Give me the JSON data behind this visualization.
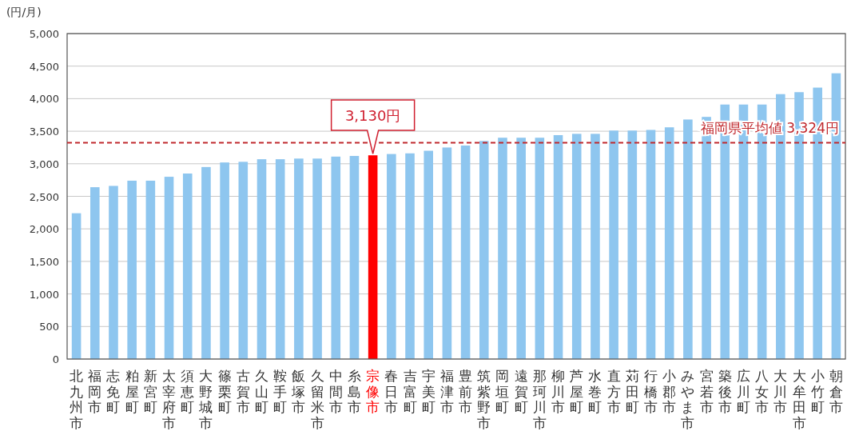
{
  "chart_data": {
    "type": "bar",
    "ylabel": "(円/月)",
    "categories": [
      "北九州市",
      "福岡市",
      "志免町",
      "粕屋町",
      "新宮町",
      "太宰府市",
      "須恵町",
      "大野城市",
      "篠栗町",
      "古賀市",
      "久山町",
      "鞍手町",
      "飯塚市",
      "久留米市",
      "中間市",
      "糸島市",
      "宗像市",
      "春日市",
      "吉富町",
      "宇美町",
      "福津市",
      "豊前市",
      "筑紫野市",
      "岡垣町",
      "遠賀町",
      "那珂川市",
      "柳川市",
      "芦屋町",
      "水巻町",
      "直方市",
      "苅田町",
      "行橋市",
      "小郡市",
      "みやま市",
      "宮若市",
      "築後市",
      "広川町",
      "八女市",
      "大川市",
      "大牟田市",
      "小竹町",
      "朝倉市"
    ],
    "values": [
      2240,
      2640,
      2660,
      2740,
      2740,
      2800,
      2850,
      2950,
      3020,
      3030,
      3070,
      3070,
      3080,
      3080,
      3110,
      3120,
      3130,
      3150,
      3160,
      3200,
      3250,
      3280,
      3350,
      3400,
      3400,
      3400,
      3440,
      3460,
      3460,
      3510,
      3510,
      3520,
      3560,
      3680,
      3720,
      3910,
      3910,
      3910,
      4070,
      4100,
      4170,
      4390
    ],
    "colors": [
      "#8ec6ef",
      "#8ec6ef",
      "#8ec6ef",
      "#8ec6ef",
      "#8ec6ef",
      "#8ec6ef",
      "#8ec6ef",
      "#8ec6ef",
      "#8ec6ef",
      "#8ec6ef",
      "#8ec6ef",
      "#8ec6ef",
      "#8ec6ef",
      "#8ec6ef",
      "#8ec6ef",
      "#8ec6ef",
      "#ff0000",
      "#8ec6ef",
      "#8ec6ef",
      "#8ec6ef",
      "#8ec6ef",
      "#8ec6ef",
      "#8ec6ef",
      "#8ec6ef",
      "#8ec6ef",
      "#8ec6ef",
      "#8ec6ef",
      "#8ec6ef",
      "#8ec6ef",
      "#8ec6ef",
      "#8ec6ef",
      "#8ec6ef",
      "#8ec6ef",
      "#8ec6ef",
      "#8ec6ef",
      "#8ec6ef",
      "#8ec6ef",
      "#8ec6ef",
      "#8ec6ef",
      "#8ec6ef",
      "#8ec6ef",
      "#8ec6ef"
    ],
    "ylim": [
      0,
      5000
    ],
    "yticks": [
      0,
      {
        "value": 500,
        "label": "500"
      },
      {
        "value": 1000,
        "label": "1,000"
      },
      {
        "value": 1500,
        "label": "1,500"
      },
      {
        "value": 2000,
        "label": "2,000"
      },
      {
        "value": 2500,
        "label": "2,500"
      },
      {
        "value": 3000,
        "label": "3,000"
      },
      {
        "value": 3500,
        "label": "3,500"
      },
      {
        "value": 4000,
        "label": "4,000"
      },
      {
        "value": 4500,
        "label": "4,500"
      },
      {
        "value": 5000,
        "label": "5,000"
      }
    ],
    "grid": "y",
    "ref_lines": [
      {
        "axis": "y",
        "value": 3324,
        "label": "福岡県平均値 3,324円",
        "color": "#c0282d",
        "line_style": "dashed"
      }
    ],
    "annotations": [
      {
        "text": "3,130円",
        "x": "宗像市",
        "y": 3130
      }
    ]
  }
}
